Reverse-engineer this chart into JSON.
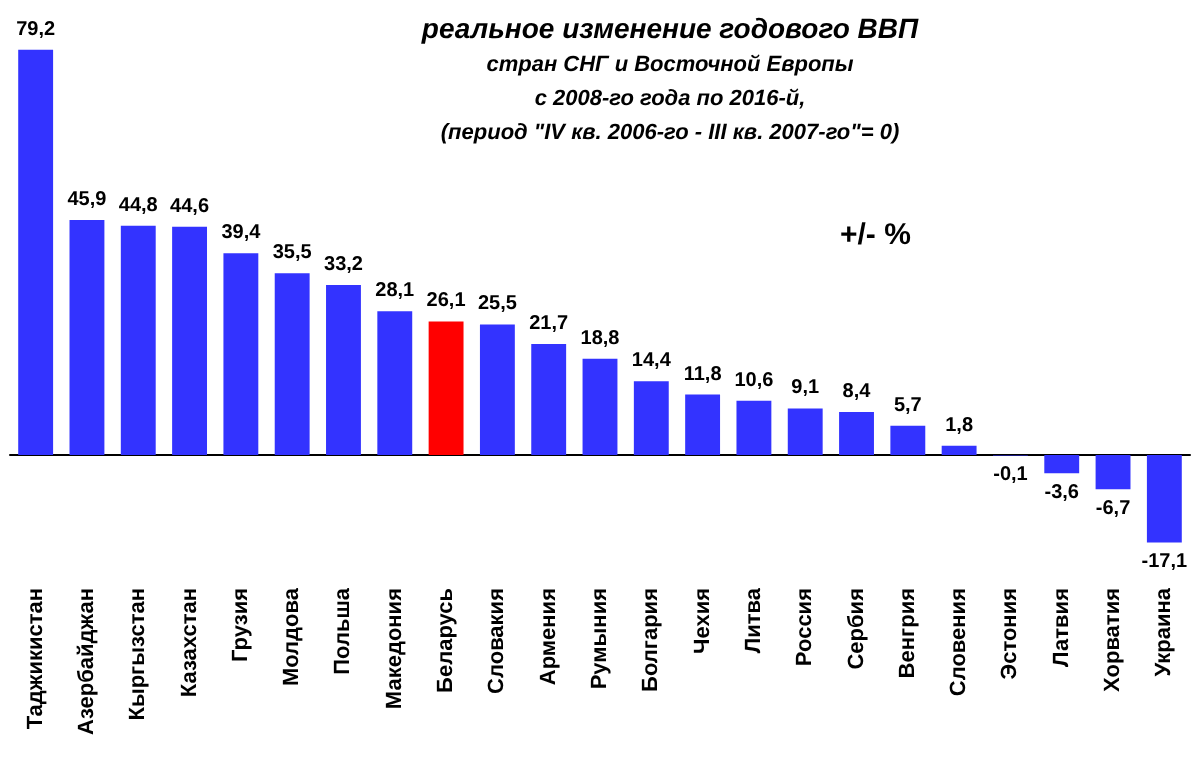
{
  "chart_data": {
    "type": "bar",
    "title": "реальное изменение годового ВВП",
    "subtitle": "стран СНГ и Восточной Европы\nс 2008-го года по 2016-й,\n(период \"IV кв. 2006-го - III кв. 2007-го\"= 0)",
    "annotations": [
      "+/- %"
    ],
    "categories": [
      "Таджикистан",
      "Азербайджан",
      "Кыргызстан",
      "Казахстан",
      "Грузия",
      "Молдова",
      "Польша",
      "Македония",
      "Беларусь",
      "Словакия",
      "Армения",
      "Румыния",
      "Болгария",
      "Чехия",
      "Литва",
      "Россия",
      "Сербия",
      "Венгрия",
      "Словения",
      "Эстония",
      "Латвия",
      "Хорватия",
      "Украина"
    ],
    "values": [
      79.2,
      45.9,
      44.8,
      44.6,
      39.4,
      35.5,
      33.2,
      28.1,
      26.1,
      25.5,
      21.7,
      18.8,
      14.4,
      11.8,
      10.6,
      9.1,
      8.4,
      5.7,
      1.8,
      -0.1,
      -3.6,
      -6.7,
      -17.1
    ],
    "value_labels": [
      "79,2",
      "45,9",
      "44,8",
      "44,6",
      "39,4",
      "35,5",
      "33,2",
      "28,1",
      "26,1",
      "25,5",
      "21,7",
      "18,8",
      "14,4",
      "11,8",
      "10,6",
      "9,1",
      "8,4",
      "5,7",
      "1,8",
      "-0,1",
      "-3,6",
      "-6,7",
      "-17,1"
    ],
    "colors": [
      "#3333ff",
      "#3333ff",
      "#3333ff",
      "#3333ff",
      "#3333ff",
      "#3333ff",
      "#3333ff",
      "#3333ff",
      "#ff0000",
      "#3333ff",
      "#3333ff",
      "#3333ff",
      "#3333ff",
      "#3333ff",
      "#3333ff",
      "#3333ff",
      "#3333ff",
      "#3333ff",
      "#3333ff",
      "#3333ff",
      "#3333ff",
      "#3333ff",
      "#3333ff"
    ]
  }
}
